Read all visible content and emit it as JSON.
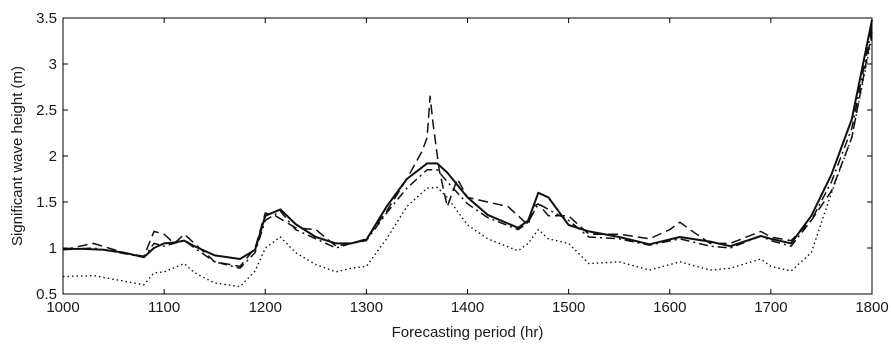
{
  "chart_data": {
    "type": "line",
    "title": "",
    "xlabel": "Forecasting period (hr)",
    "ylabel": "Significant wave height (m)",
    "xlim": [
      1000,
      1800
    ],
    "ylim": [
      0.5,
      3.5
    ],
    "xticks": [
      1000,
      1100,
      1200,
      1300,
      1400,
      1500,
      1600,
      1700,
      1800
    ],
    "xtick_labels": [
      "1000",
      "1100",
      "1200",
      "1300",
      "1400",
      "1500",
      "1600",
      "1700",
      "1800"
    ],
    "yticks": [
      0.5,
      1,
      1.5,
      2,
      2.5,
      3,
      3.5
    ],
    "ytick_labels": [
      "0.5",
      "1",
      "1.5",
      "2",
      "2.5",
      "3",
      "3.5"
    ],
    "grid": false,
    "legend": "none",
    "series": [
      {
        "style": "solid",
        "x": [
          1000,
          1020,
          1040,
          1060,
          1080,
          1090,
          1100,
          1110,
          1120,
          1130,
          1150,
          1175,
          1190,
          1200,
          1215,
          1230,
          1250,
          1270,
          1285,
          1300,
          1320,
          1340,
          1360,
          1370,
          1380,
          1400,
          1420,
          1450,
          1460,
          1470,
          1480,
          1500,
          1520,
          1550,
          1580,
          1610,
          1640,
          1660,
          1690,
          1700,
          1720,
          1740,
          1760,
          1780,
          1800
        ],
        "y": [
          0.99,
          0.99,
          0.98,
          0.95,
          0.9,
          1.0,
          1.05,
          1.06,
          1.08,
          1.02,
          0.92,
          0.88,
          0.98,
          1.35,
          1.42,
          1.26,
          1.12,
          1.05,
          1.05,
          1.09,
          1.45,
          1.75,
          1.92,
          1.92,
          1.82,
          1.55,
          1.36,
          1.22,
          1.3,
          1.6,
          1.55,
          1.25,
          1.18,
          1.12,
          1.04,
          1.12,
          1.07,
          1.02,
          1.13,
          1.1,
          1.05,
          1.35,
          1.8,
          2.4,
          3.48
        ]
      },
      {
        "style": "dashed",
        "x": [
          1000,
          1030,
          1060,
          1080,
          1090,
          1100,
          1110,
          1120,
          1130,
          1150,
          1175,
          1190,
          1200,
          1210,
          1230,
          1250,
          1270,
          1285,
          1300,
          1320,
          1340,
          1355,
          1360,
          1363,
          1366,
          1372,
          1380,
          1390,
          1400,
          1420,
          1440,
          1460,
          1465,
          1470,
          1480,
          1500,
          1520,
          1550,
          1580,
          1600,
          1610,
          1620,
          1640,
          1660,
          1690,
          1700,
          1720,
          1740,
          1760,
          1780,
          1800
        ],
        "y": [
          0.98,
          1.05,
          0.95,
          0.91,
          1.18,
          1.15,
          1.05,
          1.15,
          1.05,
          0.85,
          0.8,
          1.0,
          1.38,
          1.35,
          1.22,
          1.2,
          1.02,
          1.05,
          1.1,
          1.4,
          1.75,
          2.05,
          2.2,
          2.65,
          2.35,
          1.85,
          1.45,
          1.75,
          1.55,
          1.5,
          1.45,
          1.25,
          1.45,
          1.48,
          1.35,
          1.35,
          1.15,
          1.15,
          1.1,
          1.2,
          1.28,
          1.2,
          1.05,
          1.05,
          1.18,
          1.12,
          1.08,
          1.3,
          1.62,
          2.2,
          3.35
        ]
      },
      {
        "style": "dashdot",
        "x": [
          1000,
          1030,
          1060,
          1080,
          1090,
          1100,
          1120,
          1130,
          1150,
          1175,
          1190,
          1200,
          1215,
          1230,
          1250,
          1270,
          1285,
          1300,
          1320,
          1340,
          1360,
          1370,
          1380,
          1400,
          1420,
          1450,
          1460,
          1470,
          1480,
          1500,
          1520,
          1550,
          1580,
          1610,
          1640,
          1660,
          1690,
          1700,
          1720,
          1740,
          1760,
          1780,
          1800
        ],
        "y": [
          0.98,
          1.0,
          0.94,
          0.9,
          1.05,
          1.02,
          1.08,
          1.0,
          0.85,
          0.78,
          0.95,
          1.3,
          1.4,
          1.2,
          1.1,
          1.0,
          1.05,
          1.08,
          1.38,
          1.65,
          1.85,
          1.85,
          1.72,
          1.48,
          1.33,
          1.2,
          1.28,
          1.48,
          1.42,
          1.3,
          1.12,
          1.1,
          1.03,
          1.1,
          1.02,
          1.0,
          1.13,
          1.08,
          1.02,
          1.3,
          1.72,
          2.3,
          3.4
        ]
      },
      {
        "style": "dotted",
        "x": [
          1000,
          1030,
          1060,
          1080,
          1090,
          1100,
          1120,
          1130,
          1150,
          1175,
          1190,
          1200,
          1215,
          1230,
          1250,
          1270,
          1285,
          1300,
          1320,
          1340,
          1360,
          1370,
          1380,
          1400,
          1420,
          1450,
          1460,
          1470,
          1480,
          1500,
          1520,
          1550,
          1580,
          1610,
          1640,
          1660,
          1690,
          1700,
          1720,
          1740,
          1760,
          1780,
          1800
        ],
        "y": [
          0.69,
          0.7,
          0.64,
          0.6,
          0.73,
          0.74,
          0.83,
          0.73,
          0.62,
          0.58,
          0.75,
          1.0,
          1.12,
          0.95,
          0.82,
          0.74,
          0.78,
          0.8,
          1.1,
          1.45,
          1.65,
          1.66,
          1.55,
          1.25,
          1.1,
          0.97,
          1.05,
          1.2,
          1.1,
          1.05,
          0.83,
          0.85,
          0.76,
          0.85,
          0.76,
          0.78,
          0.88,
          0.8,
          0.75,
          0.95,
          1.6,
          2.2,
          3.3
        ]
      }
    ]
  }
}
